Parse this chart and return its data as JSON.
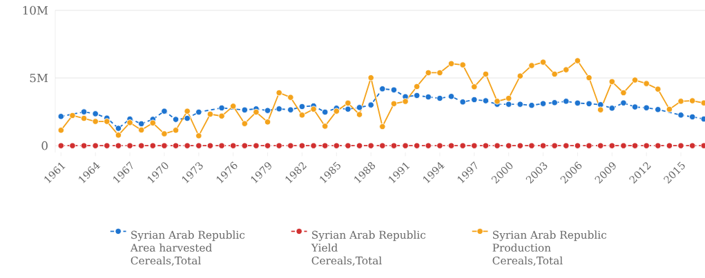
{
  "chart_data": {
    "type": "line",
    "x": [
      1961,
      1962,
      1963,
      1964,
      1965,
      1966,
      1967,
      1968,
      1969,
      1970,
      1971,
      1972,
      1973,
      1974,
      1975,
      1976,
      1977,
      1978,
      1979,
      1980,
      1981,
      1982,
      1983,
      1984,
      1985,
      1986,
      1987,
      1988,
      1989,
      1990,
      1991,
      1992,
      1993,
      1994,
      1995,
      1996,
      1997,
      1998,
      1999,
      2000,
      2001,
      2002,
      2003,
      2004,
      2005,
      2006,
      2007,
      2008,
      2009,
      2010,
      2011,
      2012,
      2013,
      2014,
      2015,
      2016,
      2017
    ],
    "xlim": [
      1960.5,
      2017.1
    ],
    "xticks": [
      1961,
      1964,
      1967,
      1970,
      1973,
      1976,
      1979,
      1982,
      1985,
      1988,
      1991,
      1994,
      1997,
      2000,
      2003,
      2006,
      2009,
      2012,
      2015
    ],
    "ylim": [
      -500000,
      10000000
    ],
    "yticks": [
      0,
      {
        "value": 5000000,
        "label": "5M"
      },
      {
        "value": 10000000,
        "label": "10M"
      }
    ],
    "grid": "y",
    "legend": "bottom",
    "marker": "circle",
    "series": [
      {
        "name": "Syrian Arab Republic\nArea harvested\nCereals,Total",
        "color": "#1e74d0",
        "line_style": "dashed",
        "values": [
          2160000,
          null,
          2500000,
          2360000,
          2040000,
          1280000,
          1970000,
          1620000,
          1950000,
          2550000,
          1940000,
          2020000,
          2480000,
          null,
          2790000,
          null,
          2640000,
          2720000,
          2600000,
          2720000,
          2650000,
          2890000,
          2940000,
          2480000,
          2770000,
          2700000,
          2820000,
          3010000,
          4200000,
          4120000,
          3620000,
          3710000,
          3600000,
          3500000,
          3640000,
          3230000,
          3400000,
          3320000,
          3060000,
          3060000,
          3060000,
          2980000,
          3110000,
          3180000,
          3280000,
          3150000,
          3100000,
          3030000,
          2770000,
          3160000,
          2860000,
          2800000,
          2670000,
          null,
          2260000,
          2130000,
          1970000
        ]
      },
      {
        "name": "Syrian Arab Republic\nYield\nCereals,Total",
        "color": "#d13030",
        "line_style": "dashed",
        "values": [
          0,
          0,
          0,
          0,
          0,
          0,
          0,
          0,
          0,
          0,
          0,
          0,
          0,
          0,
          0,
          0,
          0,
          0,
          0,
          0,
          0,
          0,
          0,
          0,
          0,
          0,
          0,
          0,
          0,
          0,
          0,
          0,
          0,
          0,
          0,
          0,
          0,
          0,
          0,
          0,
          0,
          0,
          0,
          0,
          0,
          0,
          0,
          0,
          0,
          0,
          0,
          0,
          0,
          0,
          0,
          0,
          0
        ]
      },
      {
        "name": "Syrian Arab Republic\nProduction\nCereals,Total",
        "color": "#f4a31c",
        "line_style": "solid",
        "values": [
          1140000,
          2230000,
          2020000,
          1790000,
          1790000,
          780000,
          1700000,
          1160000,
          1680000,
          880000,
          1140000,
          2550000,
          730000,
          2330000,
          2190000,
          2920000,
          1630000,
          2480000,
          1750000,
          3910000,
          3570000,
          2260000,
          2700000,
          1440000,
          2550000,
          3150000,
          2300000,
          5020000,
          1410000,
          3100000,
          3270000,
          4370000,
          5390000,
          5390000,
          6060000,
          5970000,
          4350000,
          5290000,
          3280000,
          3500000,
          5150000,
          5920000,
          6170000,
          5290000,
          5610000,
          6280000,
          5020000,
          2650000,
          4730000,
          3910000,
          4850000,
          4590000,
          4180000,
          2690000,
          3280000,
          3320000,
          3160000
        ]
      }
    ]
  }
}
